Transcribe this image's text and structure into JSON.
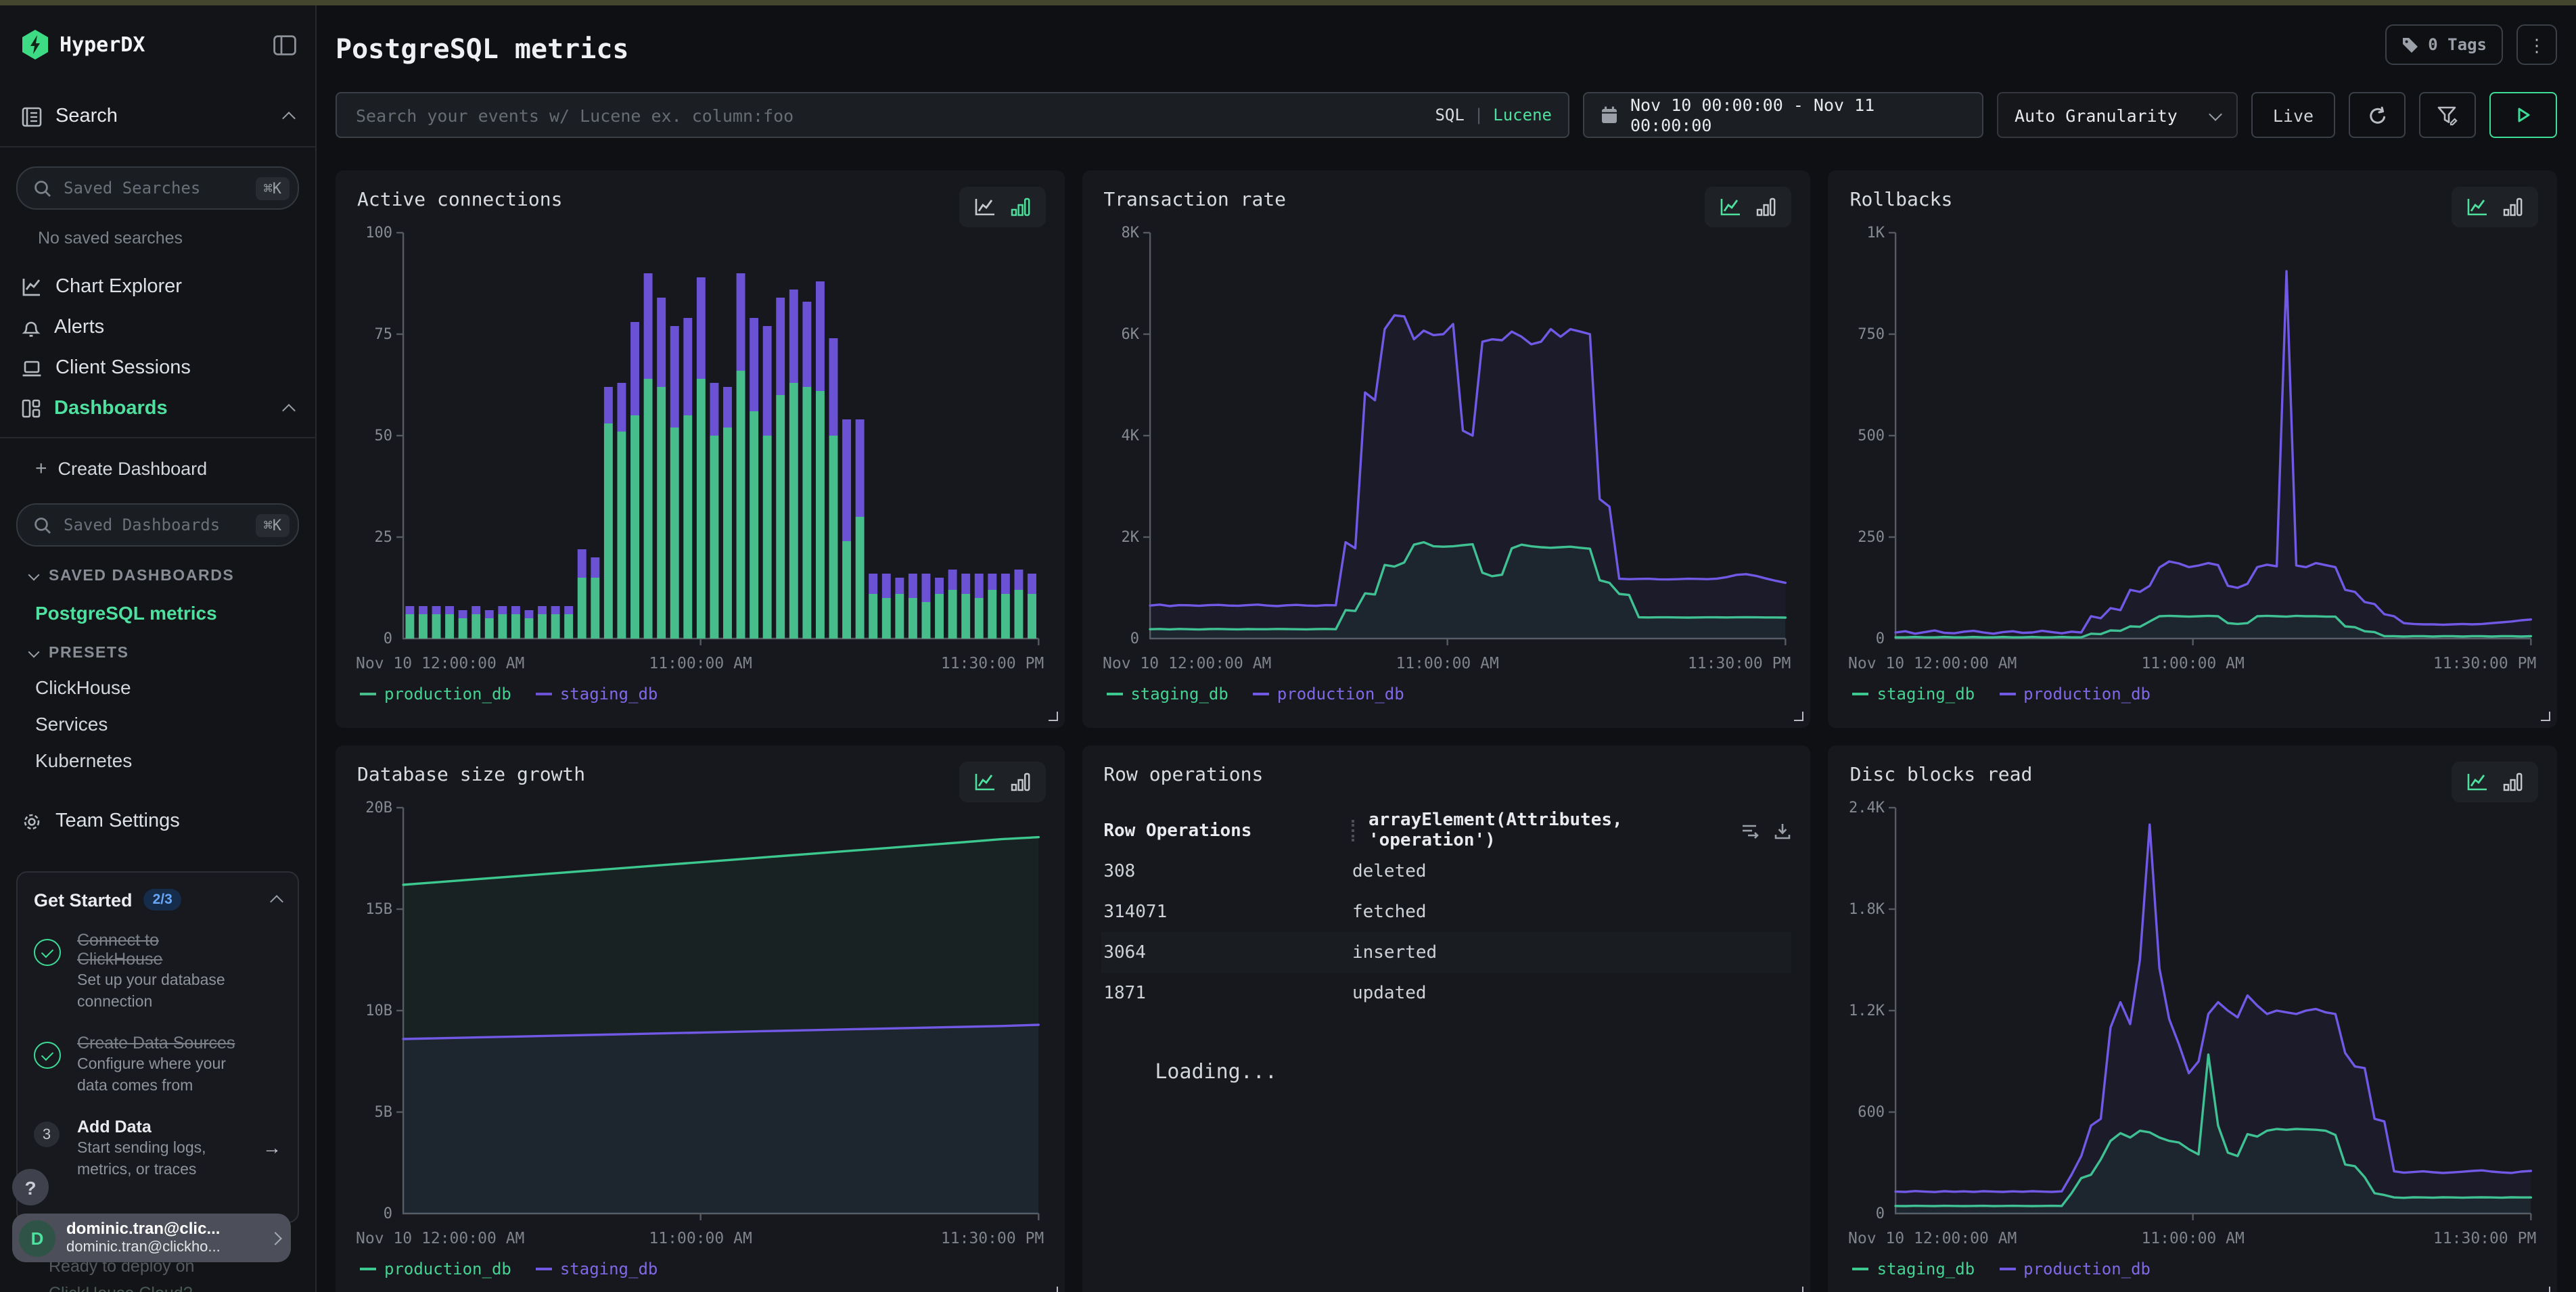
{
  "colors": {
    "accent": "#4fe0a0",
    "badge_blue": "#6aa6f8",
    "bar_green": "#47bd8c",
    "bar_purple": "#6b52d4",
    "line_green": "#3cc88e",
    "line_purple": "#7159e6"
  },
  "sidebar": {
    "brand": "HyperDX",
    "search_label": "Search",
    "saved_searches_placeholder": "Saved Searches",
    "shortcut": "⌘K",
    "no_saved_searches": "No saved searches",
    "nav": [
      {
        "label": "Chart Explorer"
      },
      {
        "label": "Alerts"
      },
      {
        "label": "Client Sessions"
      },
      {
        "label": "Dashboards"
      }
    ],
    "plus": "+",
    "create_dashboard": "Create Dashboard",
    "saved_dashboards_placeholder": "Saved Dashboards",
    "saved_dashboards_header": "SAVED DASHBOARDS",
    "presets_header": "PRESETS",
    "saved_dashboards": [
      {
        "label": "PostgreSQL metrics"
      }
    ],
    "presets": [
      {
        "label": "ClickHouse"
      },
      {
        "label": "Services"
      },
      {
        "label": "Kubernetes"
      }
    ],
    "team_settings": "Team Settings",
    "get_started": {
      "title": "Get Started",
      "badge": "2/3",
      "steps": [
        {
          "state": "done",
          "title": "Connect to ClickHouse",
          "desc": "Set up your database connection"
        },
        {
          "state": "done",
          "title": "Create Data Sources",
          "desc": "Configure where your data comes from"
        },
        {
          "state": "todo",
          "number": "3",
          "title": "Add Data",
          "desc": "Start sending logs, metrics, or traces",
          "arrow": "→"
        }
      ],
      "teaser_line1": "Ready to deploy on",
      "teaser_line2": "ClickHouse Cloud?"
    },
    "help_label": "?",
    "user": {
      "avatar_initial": "D",
      "name": "dominic.tran@clic...",
      "email": "dominic.tran@clickho..."
    }
  },
  "header": {
    "title": "PostgreSQL metrics",
    "tags_label": "0 Tags",
    "kebab": "⋮"
  },
  "toolbar": {
    "search_placeholder": "Search your events w/ Lucene ex. column:foo",
    "sql_label": "SQL",
    "divider": "|",
    "lucene_label": "Lucene",
    "date_range": "Nov 10 00:00:00 - Nov 11 00:00:00",
    "granularity": "Auto Granularity",
    "live_label": "Live"
  },
  "chart_data": [
    {
      "id": "active_connections",
      "type": "bar",
      "stacked": true,
      "title": "Active connections",
      "ylim": [
        0,
        100
      ],
      "yticks": [
        {
          "v": 0,
          "label": "0"
        },
        {
          "v": 25,
          "label": "25"
        },
        {
          "v": 50,
          "label": "50"
        },
        {
          "v": 75,
          "label": "75"
        },
        {
          "v": 100,
          "label": "100"
        }
      ],
      "xticks": [
        {
          "pos": 0,
          "label": "Nov 10 12:00:00 AM"
        },
        {
          "pos": 0.468,
          "label": "11:00:00 AM"
        },
        {
          "pos": 1,
          "label": "11:30:00 PM"
        }
      ],
      "series": [
        {
          "name": "production_db",
          "color": "#47bd8c",
          "legend_color": "#46d292",
          "values": [
            6,
            6,
            6,
            6,
            5,
            6,
            5,
            6,
            6,
            5,
            6,
            6,
            6,
            15,
            15,
            53,
            51,
            55,
            64,
            62,
            52,
            55,
            64,
            50,
            52,
            66,
            56,
            50,
            60,
            63,
            62,
            61,
            50,
            24,
            30,
            11,
            10,
            11,
            10,
            9,
            11,
            12,
            11,
            10,
            12,
            11,
            12,
            11
          ]
        },
        {
          "name": "staging_db",
          "color": "#6b52d4",
          "legend_color": "#8168e6",
          "values": [
            2,
            2,
            2,
            2,
            2,
            2,
            2,
            2,
            2,
            2,
            2,
            2,
            2,
            7,
            5,
            9,
            12,
            23,
            26,
            22,
            25,
            24,
            25,
            13,
            10,
            24,
            23,
            27,
            24,
            23,
            21,
            27,
            24,
            30,
            24,
            5,
            6,
            4,
            6,
            7,
            4,
            5,
            5,
            6,
            4,
            5,
            5,
            5
          ]
        }
      ]
    },
    {
      "id": "transaction_rate",
      "type": "line",
      "title": "Transaction rate",
      "ylim": [
        0,
        8000
      ],
      "yticks": [
        {
          "v": 0,
          "label": "0"
        },
        {
          "v": 2000,
          "label": "2K"
        },
        {
          "v": 4000,
          "label": "4K"
        },
        {
          "v": 6000,
          "label": "6K"
        },
        {
          "v": 8000,
          "label": "8K"
        }
      ],
      "xticks": [
        {
          "pos": 0,
          "label": "Nov 10 12:00:00 AM"
        },
        {
          "pos": 0.468,
          "label": "11:00:00 AM"
        },
        {
          "pos": 1,
          "label": "11:30:00 PM"
        }
      ],
      "series": [
        {
          "name": "staging_db",
          "color": "#3cc88e",
          "legend_color": "#46d292",
          "values": [
            185,
            190,
            182,
            188,
            185,
            180,
            186,
            190,
            184,
            182,
            187,
            185,
            183,
            188,
            186,
            184,
            182,
            186,
            188,
            185,
            560,
            545,
            890,
            870,
            1450,
            1420,
            1500,
            1850,
            1900,
            1820,
            1810,
            1820,
            1840,
            1860,
            1300,
            1230,
            1260,
            1780,
            1850,
            1820,
            1800,
            1790,
            1800,
            1810,
            1790,
            1770,
            1150,
            1100,
            880,
            860,
            420,
            415,
            418,
            420,
            416,
            414,
            417,
            420,
            418,
            415,
            419,
            422,
            420,
            417,
            415,
            413
          ]
        },
        {
          "name": "production_db",
          "color": "#7159e6",
          "legend_color": "#8168e6",
          "values": [
            650,
            670,
            640,
            660,
            655,
            645,
            660,
            665,
            650,
            645,
            660,
            670,
            650,
            640,
            655,
            665,
            650,
            645,
            660,
            655,
            1900,
            1780,
            4850,
            4700,
            6100,
            6370,
            6350,
            5900,
            6070,
            5980,
            6000,
            6200,
            4100,
            4000,
            5850,
            5900,
            5880,
            6050,
            5950,
            5800,
            5850,
            6100,
            5950,
            6100,
            6050,
            6000,
            2750,
            2600,
            1180,
            1170,
            1175,
            1180,
            1168,
            1165,
            1172,
            1180,
            1176,
            1170,
            1182,
            1210,
            1255,
            1270,
            1235,
            1185,
            1140,
            1100
          ]
        }
      ]
    },
    {
      "id": "rollbacks",
      "type": "line",
      "title": "Rollbacks",
      "ylim": [
        0,
        1000
      ],
      "yticks": [
        {
          "v": 0,
          "label": "0"
        },
        {
          "v": 250,
          "label": "250"
        },
        {
          "v": 500,
          "label": "500"
        },
        {
          "v": 750,
          "label": "750"
        },
        {
          "v": 1000,
          "label": "1K"
        }
      ],
      "xticks": [
        {
          "pos": 0,
          "label": "Nov 10 12:00:00 AM"
        },
        {
          "pos": 0.468,
          "label": "11:00:00 AM"
        },
        {
          "pos": 1,
          "label": "11:30:00 PM"
        }
      ],
      "series": [
        {
          "name": "staging_db",
          "color": "#3cc88e",
          "legend_color": "#46d292",
          "values": [
            3,
            3,
            4,
            3,
            3,
            4,
            3,
            3,
            4,
            3,
            3,
            4,
            3,
            3,
            4,
            3,
            3,
            4,
            3,
            3,
            12,
            11,
            20,
            19,
            30,
            29,
            42,
            55,
            56,
            55,
            54,
            55,
            56,
            55,
            38,
            36,
            38,
            55,
            56,
            55,
            54,
            56,
            55,
            55,
            54,
            54,
            30,
            28,
            18,
            16,
            6,
            6,
            5,
            6,
            6,
            5,
            6,
            6,
            5,
            6,
            6,
            5,
            6,
            6,
            5,
            6
          ]
        },
        {
          "name": "production_db",
          "color": "#7159e6",
          "legend_color": "#8168e6",
          "values": [
            15,
            18,
            12,
            16,
            20,
            14,
            13,
            17,
            19,
            15,
            12,
            16,
            18,
            14,
            15,
            19,
            16,
            13,
            17,
            15,
            55,
            50,
            75,
            70,
            120,
            115,
            130,
            175,
            190,
            185,
            176,
            180,
            186,
            181,
            130,
            125,
            135,
            176,
            182,
            178,
            905,
            180,
            176,
            186,
            181,
            176,
            120,
            115,
            90,
            85,
            60,
            55,
            38,
            36,
            35,
            35,
            34,
            35,
            36,
            35,
            36,
            38,
            40,
            42,
            45,
            47
          ]
        }
      ]
    },
    {
      "id": "database_size_growth",
      "type": "line",
      "title": "Database size growth",
      "ylim": [
        0,
        20
      ],
      "yticks": [
        {
          "v": 0,
          "label": "0"
        },
        {
          "v": 5,
          "label": "5B"
        },
        {
          "v": 10,
          "label": "10B"
        },
        {
          "v": 15,
          "label": "15B"
        },
        {
          "v": 20,
          "label": "20B"
        }
      ],
      "xticks": [
        {
          "pos": 0,
          "label": "Nov 10 12:00:00 AM"
        },
        {
          "pos": 0.468,
          "label": "11:00:00 AM"
        },
        {
          "pos": 1,
          "label": "11:30:00 PM"
        }
      ],
      "series": [
        {
          "name": "production_db",
          "color": "#3cc88e",
          "legend_color": "#46d292",
          "values": [
            16.2,
            16.34,
            16.48,
            16.62,
            16.76,
            16.9,
            17.04,
            17.18,
            17.32,
            17.46,
            17.6,
            17.74,
            17.88,
            18.02,
            18.16,
            18.3,
            18.45,
            18.55
          ]
        },
        {
          "name": "staging_db",
          "color": "#7159e6",
          "legend_color": "#8168e6",
          "values": [
            8.6,
            8.64,
            8.68,
            8.72,
            8.76,
            8.8,
            8.84,
            8.88,
            8.92,
            8.96,
            9.0,
            9.04,
            9.08,
            9.12,
            9.16,
            9.2,
            9.24,
            9.3
          ]
        }
      ]
    },
    {
      "id": "row_operations",
      "type": "table",
      "title": "Row operations",
      "columns": [
        "Row Operations",
        "arrayElement(Attributes, 'operation')"
      ],
      "rows": [
        [
          "308",
          "deleted"
        ],
        [
          "314071",
          "fetched"
        ],
        [
          "3064",
          "inserted"
        ],
        [
          "1871",
          "updated"
        ]
      ],
      "status": "Loading..."
    },
    {
      "id": "disc_blocks_read",
      "type": "line",
      "title": "Disc blocks read",
      "ylim": [
        0,
        2400
      ],
      "yticks": [
        {
          "v": 0,
          "label": "0"
        },
        {
          "v": 600,
          "label": "600"
        },
        {
          "v": 1200,
          "label": "1.2K"
        },
        {
          "v": 1800,
          "label": "1.8K"
        },
        {
          "v": 2400,
          "label": "2.4K"
        }
      ],
      "xticks": [
        {
          "pos": 0,
          "label": "Nov 10 12:00:00 AM"
        },
        {
          "pos": 0.468,
          "label": "11:00:00 AM"
        },
        {
          "pos": 1,
          "label": "11:30:00 PM"
        }
      ],
      "series": [
        {
          "name": "staging_db",
          "color": "#3cc88e",
          "legend_color": "#46d292",
          "values": [
            45,
            44,
            46,
            45,
            44,
            46,
            45,
            44,
            45,
            46,
            44,
            45,
            46,
            45,
            44,
            45,
            46,
            45,
            120,
            210,
            230,
            320,
            430,
            475,
            450,
            490,
            480,
            450,
            430,
            420,
            380,
            350,
            940,
            520,
            360,
            340,
            470,
            455,
            490,
            500,
            495,
            500,
            498,
            495,
            490,
            465,
            290,
            280,
            215,
            120,
            110,
            95,
            93,
            96,
            95,
            94,
            96,
            95,
            94,
            95,
            96,
            95,
            94,
            96,
            95,
            95
          ]
        },
        {
          "name": "production_db",
          "color": "#7159e6",
          "legend_color": "#8168e6",
          "values": [
            130,
            128,
            133,
            130,
            127,
            132,
            129,
            131,
            128,
            132,
            130,
            128,
            131,
            129,
            132,
            130,
            128,
            131,
            230,
            340,
            520,
            560,
            1100,
            1250,
            1120,
            1500,
            2300,
            1450,
            1150,
            1000,
            830,
            900,
            1180,
            1250,
            1200,
            1160,
            1290,
            1230,
            1180,
            1200,
            1190,
            1180,
            1200,
            1210,
            1190,
            1180,
            950,
            870,
            860,
            560,
            545,
            250,
            242,
            246,
            250,
            244,
            240,
            243,
            247,
            252,
            255,
            248,
            243,
            240,
            248,
            252
          ]
        }
      ]
    }
  ]
}
